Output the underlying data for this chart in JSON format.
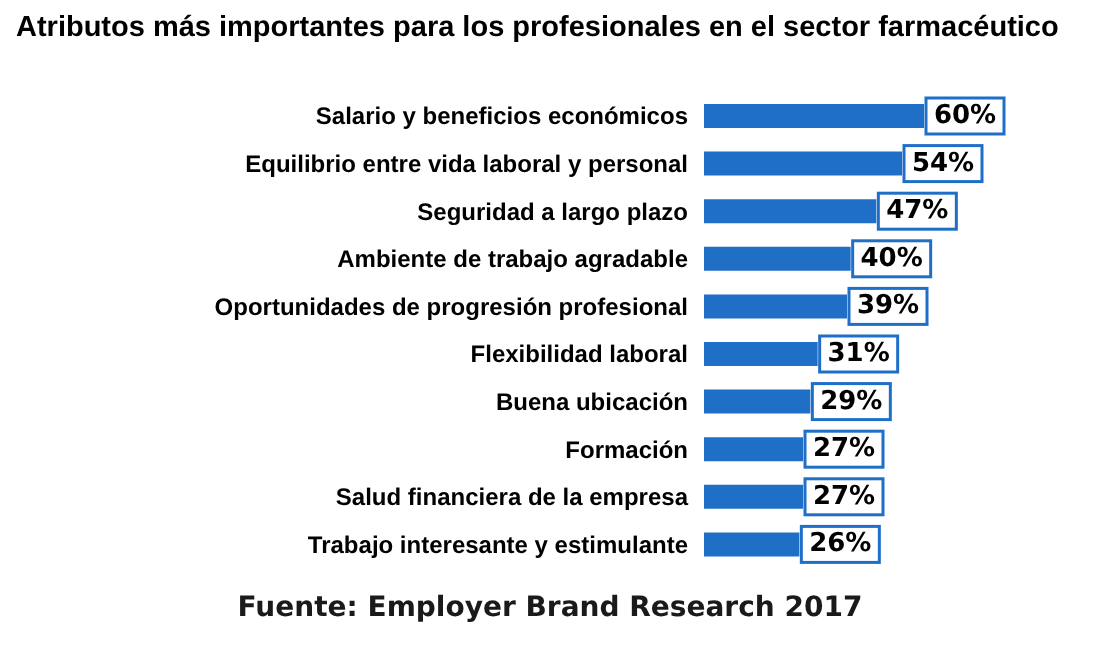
{
  "chart_data": {
    "type": "bar",
    "orientation": "horizontal",
    "title": "Atributos más importantes para los profesionales en el sector farmacéutico",
    "categories": [
      "Salario y beneficios económicos",
      "Equilibrio entre vida laboral y personal",
      "Seguridad a largo plazo",
      "Ambiente de trabajo agradable",
      "Oportunidades de progresión profesional",
      "Flexibilidad laboral",
      "Buena ubicación",
      "Formación",
      "Salud financiera de la empresa",
      "Trabajo interesante y estimulante"
    ],
    "values": [
      60,
      54,
      47,
      40,
      39,
      31,
      29,
      27,
      27,
      26
    ],
    "value_labels": [
      "60%",
      "54%",
      "47%",
      "40%",
      "39%",
      "31%",
      "29%",
      "27%",
      "27%",
      "26%"
    ],
    "color": "#1f6fc6",
    "annotations": [
      "Fuente: Employer Brand Research 2017"
    ]
  }
}
